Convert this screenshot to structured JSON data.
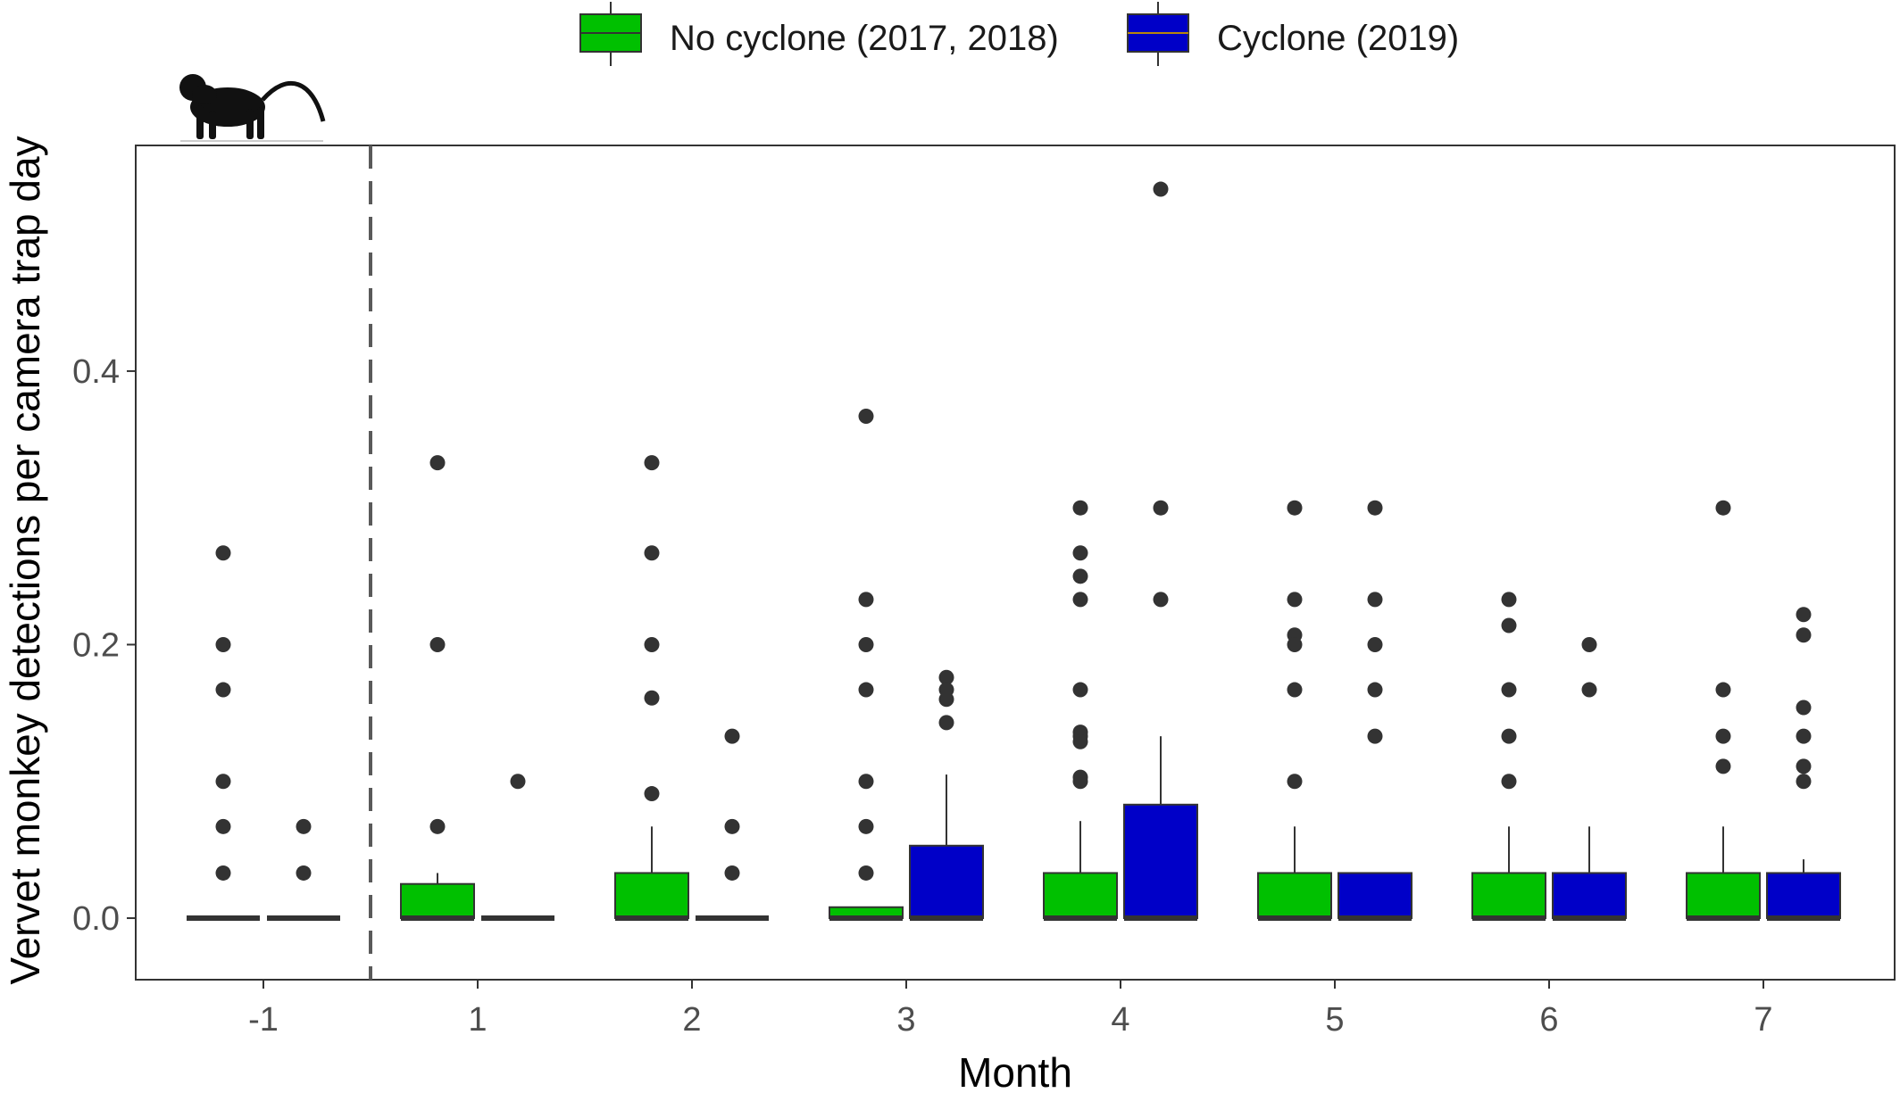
{
  "chart_data": {
    "type": "box",
    "xlabel": "Month",
    "ylabel": "Vervet monkey detections per camera trap day",
    "categories": [
      "-1",
      "1",
      "2",
      "3",
      "4",
      "5",
      "6",
      "7"
    ],
    "ylim": [
      -0.045,
      0.565
    ],
    "yticks": [
      0.0,
      0.2,
      0.4
    ],
    "ytick_labels": [
      "0.0",
      "0.2",
      "0.4"
    ],
    "grid": false,
    "legend_position": "top",
    "reference_line": {
      "between": [
        "-1",
        "1"
      ],
      "style": "dashed"
    },
    "series": [
      {
        "name": "No cyclone (2017, 2018)",
        "color": "#00c000",
        "boxes": [
          {
            "category": "-1",
            "q1": 0,
            "median": 0,
            "q3": 0,
            "whisker_low": 0,
            "whisker_high": 0,
            "outliers": [
              0.267,
              0.2,
              0.167,
              0.1,
              0.067,
              0.033
            ]
          },
          {
            "category": "1",
            "q1": 0,
            "median": 0,
            "q3": 0.025,
            "whisker_low": 0,
            "whisker_high": 0.033,
            "outliers": [
              0.333,
              0.2,
              0.067
            ]
          },
          {
            "category": "2",
            "q1": 0,
            "median": 0,
            "q3": 0.033,
            "whisker_low": 0,
            "whisker_high": 0.067,
            "outliers": [
              0.333,
              0.267,
              0.2,
              0.161,
              0.091
            ]
          },
          {
            "category": "3",
            "q1": 0,
            "median": 0,
            "q3": 0.008,
            "whisker_low": 0,
            "whisker_high": 0.008,
            "outliers": [
              0.367,
              0.233,
              0.2,
              0.167,
              0.1,
              0.067,
              0.033
            ]
          },
          {
            "category": "4",
            "q1": 0,
            "median": 0,
            "q3": 0.033,
            "whisker_low": 0,
            "whisker_high": 0.071,
            "outliers": [
              0.3,
              0.267,
              0.25,
              0.233,
              0.167,
              0.136,
              0.133,
              0.129,
              0.103,
              0.1
            ]
          },
          {
            "category": "5",
            "q1": 0,
            "median": 0,
            "q3": 0.033,
            "whisker_low": 0,
            "whisker_high": 0.067,
            "outliers": [
              0.3,
              0.233,
              0.207,
              0.2,
              0.167,
              0.1
            ]
          },
          {
            "category": "6",
            "q1": 0,
            "median": 0,
            "q3": 0.033,
            "whisker_low": 0,
            "whisker_high": 0.067,
            "outliers": [
              0.233,
              0.214,
              0.167,
              0.133,
              0.1
            ]
          },
          {
            "category": "7",
            "q1": 0,
            "median": 0,
            "q3": 0.033,
            "whisker_low": 0,
            "whisker_high": 0.067,
            "outliers": [
              0.3,
              0.167,
              0.133,
              0.111
            ]
          }
        ]
      },
      {
        "name": "Cyclone (2019)",
        "color": "#0000c8",
        "boxes": [
          {
            "category": "-1",
            "q1": 0,
            "median": 0,
            "q3": 0,
            "whisker_low": 0,
            "whisker_high": 0,
            "outliers": [
              0.067,
              0.033
            ]
          },
          {
            "category": "1",
            "q1": 0,
            "median": 0,
            "q3": 0,
            "whisker_low": 0,
            "whisker_high": 0,
            "outliers": [
              0.1
            ]
          },
          {
            "category": "2",
            "q1": 0,
            "median": 0,
            "q3": 0,
            "whisker_low": 0,
            "whisker_high": 0,
            "outliers": [
              0.133,
              0.067,
              0.033
            ]
          },
          {
            "category": "3",
            "q1": 0,
            "median": 0,
            "q3": 0.053,
            "whisker_low": 0,
            "whisker_high": 0.105,
            "outliers": [
              0.176,
              0.167,
              0.16,
              0.143
            ]
          },
          {
            "category": "4",
            "q1": 0,
            "median": 0,
            "q3": 0.083,
            "whisker_low": 0,
            "whisker_high": 0.133,
            "outliers": [
              0.533,
              0.3,
              0.233
            ]
          },
          {
            "category": "5",
            "q1": 0,
            "median": 0,
            "q3": 0.033,
            "whisker_low": 0,
            "whisker_high": 0.033,
            "outliers": [
              0.3,
              0.233,
              0.2,
              0.167,
              0.133
            ]
          },
          {
            "category": "6",
            "q1": 0,
            "median": 0,
            "q3": 0.033,
            "whisker_low": 0,
            "whisker_high": 0.067,
            "outliers": [
              0.2,
              0.167
            ]
          },
          {
            "category": "7",
            "q1": 0,
            "median": 0,
            "q3": 0.033,
            "whisker_low": 0,
            "whisker_high": 0.043,
            "outliers": [
              0.222,
              0.207,
              0.154,
              0.133,
              0.111,
              0.1
            ]
          }
        ]
      }
    ]
  },
  "icons": {
    "species": "vervet-monkey-icon"
  }
}
